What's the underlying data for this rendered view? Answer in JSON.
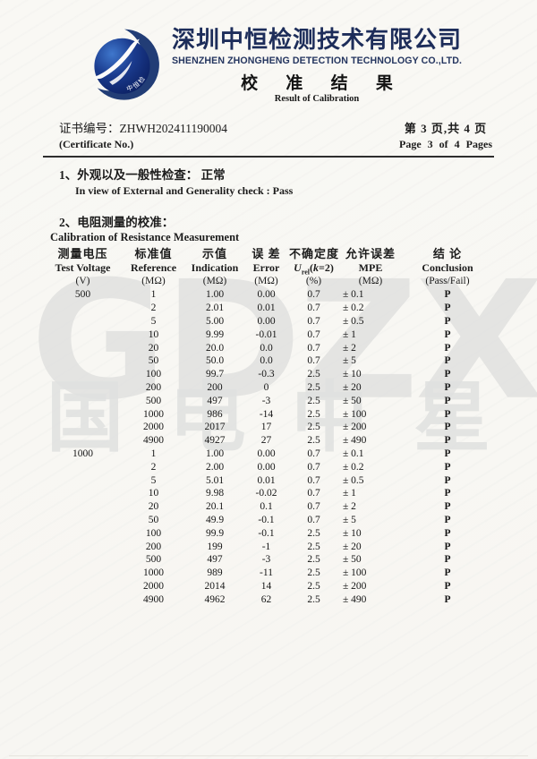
{
  "header": {
    "company_cn": "深圳中恒检测技术有限公司",
    "company_en": "SHENZHEN ZHONGHENG DETECTION TECHNOLOGY CO.,LTD.",
    "result_title_cn": "校 准 结 果",
    "result_title_en": "Result of Calibration",
    "logo_text": "中恒检测"
  },
  "certificate": {
    "no_line": "证书编号：ZHWH202411190004",
    "no_label_en": "(Certificate No.)",
    "page_cn": "第 3 页,共 4 页",
    "page_en": "Page 3 of 4 Pages"
  },
  "sections": {
    "item1_cn": "1、外观以及一般性检查： 正常",
    "item1_en": "In view of External and Generality check : Pass",
    "item2_cn": "2、电阻测量的校准：",
    "item2_en": "Calibration of Resistance Measurement"
  },
  "table": {
    "header_cn": [
      "测量电压",
      "标准值",
      "示值",
      "误 差",
      "不确定度",
      "允许误差",
      "结 论"
    ],
    "header_en": [
      "Test Voltage",
      "Reference",
      "Indication",
      "Error",
      "",
      "MPE",
      "Conclusion"
    ],
    "u_header": {
      "u": "U",
      "sub": "rel",
      "open": "(",
      "k": "k",
      "tail": "=2)"
    },
    "header_units": [
      "(V)",
      "(MΩ)",
      "(MΩ)",
      "(MΩ)",
      "(%)",
      "(MΩ)",
      "(Pass/Fail)"
    ],
    "groups": [
      {
        "voltage": "500",
        "rows": [
          [
            "1",
            "1.00",
            "0.00",
            "0.7",
            "± 0.1",
            "P"
          ],
          [
            "2",
            "2.01",
            "0.01",
            "0.7",
            "± 0.2",
            "P"
          ],
          [
            "5",
            "5.00",
            "0.00",
            "0.7",
            "± 0.5",
            "P"
          ],
          [
            "10",
            "9.99",
            "-0.01",
            "0.7",
            "± 1",
            "P"
          ],
          [
            "20",
            "20.0",
            "0.0",
            "0.7",
            "± 2",
            "P"
          ],
          [
            "50",
            "50.0",
            "0.0",
            "0.7",
            "± 5",
            "P"
          ],
          [
            "100",
            "99.7",
            "-0.3",
            "2.5",
            "± 10",
            "P"
          ],
          [
            "200",
            "200",
            "0",
            "2.5",
            "± 20",
            "P"
          ],
          [
            "500",
            "497",
            "-3",
            "2.5",
            "± 50",
            "P"
          ],
          [
            "1000",
            "986",
            "-14",
            "2.5",
            "± 100",
            "P"
          ],
          [
            "2000",
            "2017",
            "17",
            "2.5",
            "± 200",
            "P"
          ],
          [
            "4900",
            "4927",
            "27",
            "2.5",
            "± 490",
            "P"
          ]
        ]
      },
      {
        "voltage": "1000",
        "rows": [
          [
            "1",
            "1.00",
            "0.00",
            "0.7",
            "± 0.1",
            "P"
          ],
          [
            "2",
            "2.00",
            "0.00",
            "0.7",
            "± 0.2",
            "P"
          ],
          [
            "5",
            "5.01",
            "0.01",
            "0.7",
            "± 0.5",
            "P"
          ],
          [
            "10",
            "9.98",
            "-0.02",
            "0.7",
            "± 1",
            "P"
          ],
          [
            "20",
            "20.1",
            "0.1",
            "0.7",
            "± 2",
            "P"
          ],
          [
            "50",
            "49.9",
            "-0.1",
            "0.7",
            "± 5",
            "P"
          ],
          [
            "100",
            "99.9",
            "-0.1",
            "2.5",
            "± 10",
            "P"
          ],
          [
            "200",
            "199",
            "-1",
            "2.5",
            "± 20",
            "P"
          ],
          [
            "500",
            "497",
            "-3",
            "2.5",
            "± 50",
            "P"
          ],
          [
            "1000",
            "989",
            "-11",
            "2.5",
            "± 100",
            "P"
          ],
          [
            "2000",
            "2014",
            "14",
            "2.5",
            "± 200",
            "P"
          ],
          [
            "4900",
            "4962",
            "62",
            "2.5",
            "± 490",
            "P"
          ]
        ]
      }
    ]
  },
  "watermark": {
    "letters": "GDZX",
    "cjk": [
      "国",
      "电",
      "中",
      "星"
    ]
  },
  "colors": {
    "brand_navy": "#1d2d5a",
    "watermark_gray": "#d9dad9",
    "paper": "#f8f7f3"
  }
}
